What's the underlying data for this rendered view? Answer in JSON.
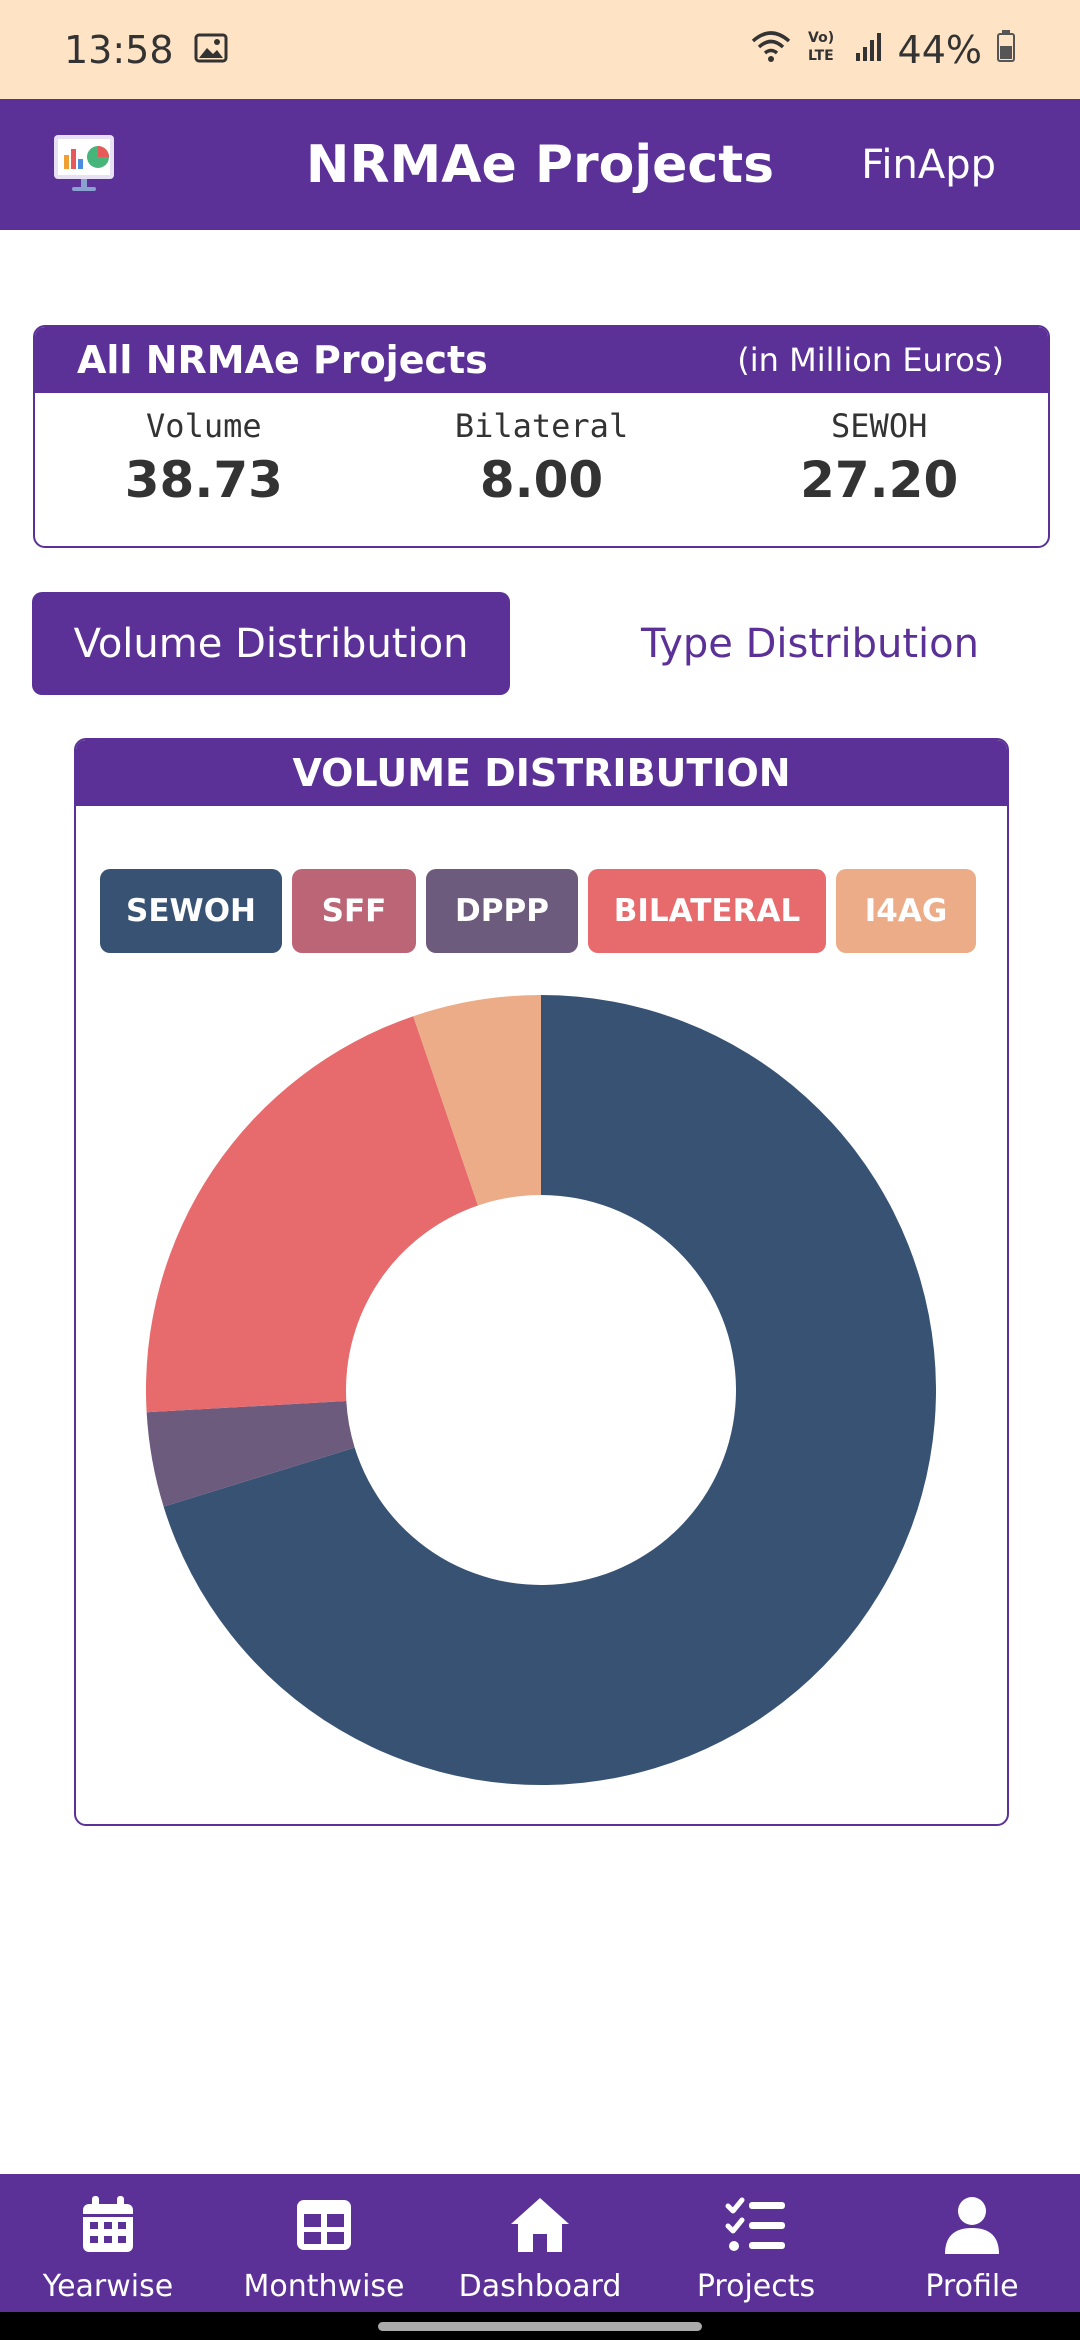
{
  "status": {
    "time": "13:58",
    "battery": "44%",
    "icons": [
      "image-icon",
      "wifi-icon",
      "volte-icon",
      "signal-icon",
      "battery-icon"
    ]
  },
  "app_bar": {
    "title": "NRMAe Projects",
    "brand": "FinApp",
    "logo_icon": "presentation-chart-icon",
    "accent": "#5b3197"
  },
  "summary": {
    "title": "All NRMAe Projects",
    "unit": "(in Million Euros)",
    "stats": [
      {
        "label": "Volume",
        "value": "38.73"
      },
      {
        "label": "Bilateral",
        "value": "8.00"
      },
      {
        "label": "SEWOH",
        "value": "27.20"
      }
    ]
  },
  "tabs": {
    "active": "Volume Distribution",
    "inactive": "Type Distribution"
  },
  "chart": {
    "title": "VOLUME DISTRIBUTION"
  },
  "chart_data": {
    "type": "pie",
    "donut": true,
    "title": "VOLUME DISTRIBUTION",
    "legend_placement": "top",
    "categories": [
      "SEWOH",
      "SFF",
      "DPPP",
      "BILATERAL",
      "I4AG"
    ],
    "values": [
      27.2,
      0.0,
      1.5,
      8.0,
      2.03
    ],
    "colors": [
      "#375273",
      "#bb6576",
      "#6d5b7e",
      "#e76a6c",
      "#ebac87"
    ]
  },
  "nav": [
    {
      "label": "Yearwise",
      "icon": "calendar-icon"
    },
    {
      "label": "Monthwise",
      "icon": "table-icon"
    },
    {
      "label": "Dashboard",
      "icon": "home-icon"
    },
    {
      "label": "Projects",
      "icon": "checklist-icon"
    },
    {
      "label": "Profile",
      "icon": "user-icon"
    }
  ]
}
